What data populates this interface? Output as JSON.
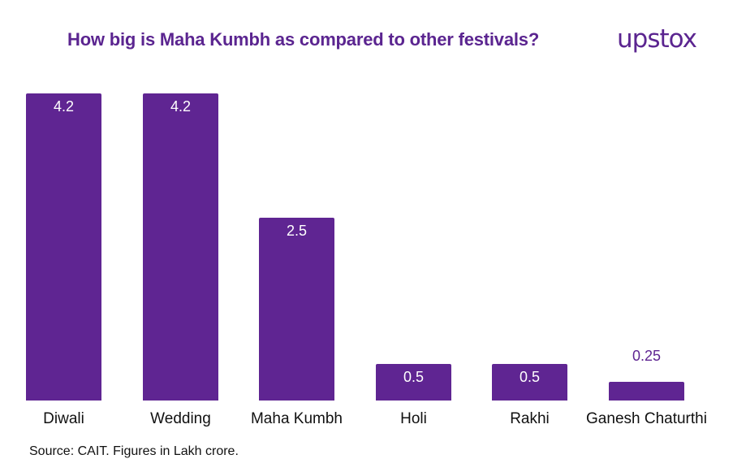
{
  "header": {
    "title": "How big is Maha Kumbh as compared to other festivals?",
    "logo": "upstox"
  },
  "footer": {
    "source": "Source: CAIT. Figures in Lakh crore."
  },
  "colors": {
    "bar": "#5f2592",
    "title": "#5b2590"
  },
  "chart_data": {
    "type": "bar",
    "title": "How big is Maha Kumbh as compared to other festivals?",
    "categories": [
      "Diwali",
      "Wedding",
      "Maha Kumbh",
      "Holi",
      "Rakhi",
      "Ganesh Chaturthi"
    ],
    "values": [
      4.2,
      4.2,
      2.5,
      0.5,
      0.5,
      0.25
    ],
    "value_labels": [
      "4.2",
      "4.2",
      "2.5",
      "0.5",
      "0.5",
      "0.25"
    ],
    "xlabel": "",
    "ylabel": "",
    "units": "Lakh crore",
    "ylim": [
      0,
      4.2
    ],
    "grid": false,
    "legend": "none",
    "annotation": "Source: CAIT. Figures in Lakh crore."
  }
}
